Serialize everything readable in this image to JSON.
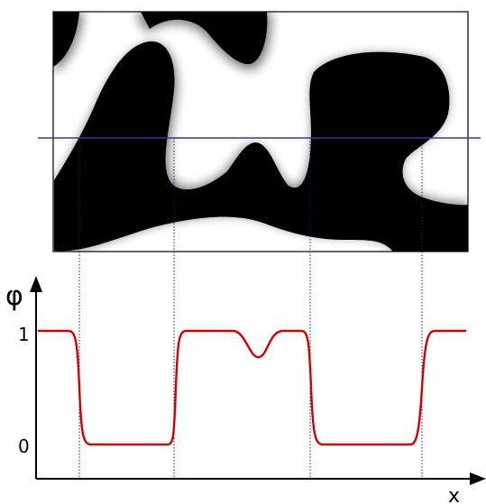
{
  "axes": {
    "y_symbol": "φ",
    "x_symbol": "x",
    "tick_top": "1",
    "tick_bottom": "0"
  },
  "colors": {
    "profile": "#d40000",
    "scan_line": "#3a3a8c",
    "phase_dark": "#000000",
    "phase_light": "#ffffff",
    "guides": "#1a1a6e"
  }
}
